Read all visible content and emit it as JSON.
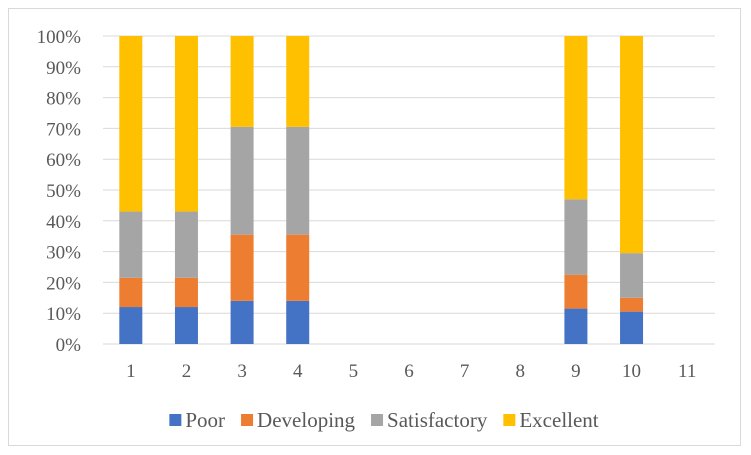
{
  "chart_data": {
    "type": "bar",
    "stacked": true,
    "percent_stacked": true,
    "categories": [
      "1",
      "2",
      "3",
      "4",
      "5",
      "6",
      "7",
      "8",
      "9",
      "10",
      "11"
    ],
    "series": [
      {
        "name": "Poor",
        "color": "#4472C4",
        "values": [
          12,
          12,
          14,
          14,
          0,
          0,
          0,
          0,
          11.5,
          10.5,
          0
        ]
      },
      {
        "name": "Developing",
        "color": "#ED7D31",
        "values": [
          9.5,
          9.5,
          21.5,
          21.5,
          0,
          0,
          0,
          0,
          11,
          4.5,
          0
        ]
      },
      {
        "name": "Satisfactory",
        "color": "#A5A5A5",
        "values": [
          21.5,
          21.5,
          35,
          35,
          0,
          0,
          0,
          0,
          24.5,
          14.5,
          0
        ]
      },
      {
        "name": "Excellent",
        "color": "#FFC000",
        "values": [
          57,
          57,
          29.5,
          29.5,
          0,
          0,
          0,
          0,
          53,
          70.5,
          0
        ]
      }
    ],
    "y_ticks": [
      "0%",
      "10%",
      "20%",
      "30%",
      "40%",
      "50%",
      "60%",
      "70%",
      "80%",
      "90%",
      "100%"
    ],
    "ylim": [
      0,
      100
    ],
    "grid": true,
    "legend_position": "bottom"
  }
}
